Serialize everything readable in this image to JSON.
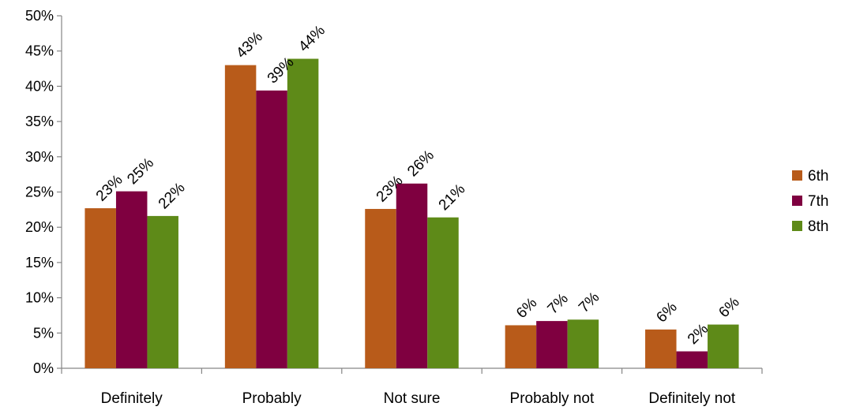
{
  "chart_data": {
    "type": "bar",
    "categories": [
      "Definitely",
      "Probably",
      "Not sure",
      "Probably not",
      "Definitely not"
    ],
    "series": [
      {
        "name": "6th",
        "color": "#B85B1A",
        "values": [
          22.7,
          43.0,
          22.6,
          6.1,
          5.5
        ],
        "labels": [
          "23%",
          "43%",
          "23%",
          "6%",
          "6%"
        ]
      },
      {
        "name": "7th",
        "color": "#7F0040",
        "values": [
          25.1,
          39.4,
          26.2,
          6.7,
          2.4
        ],
        "labels": [
          "25%",
          "39%",
          "26%",
          "7%",
          "2%"
        ]
      },
      {
        "name": "8th",
        "color": "#5E8A18",
        "values": [
          21.6,
          43.9,
          21.4,
          6.9,
          6.2
        ],
        "labels": [
          "22%",
          "44%",
          "21%",
          "7%",
          "6%"
        ]
      }
    ],
    "yticks": [
      "0%",
      "5%",
      "10%",
      "15%",
      "20%",
      "25%",
      "30%",
      "35%",
      "40%",
      "45%",
      "50%"
    ],
    "ylim": [
      0,
      50
    ],
    "title": "",
    "xlabel": "",
    "ylabel": "",
    "grid": false,
    "legend_position": "right"
  }
}
